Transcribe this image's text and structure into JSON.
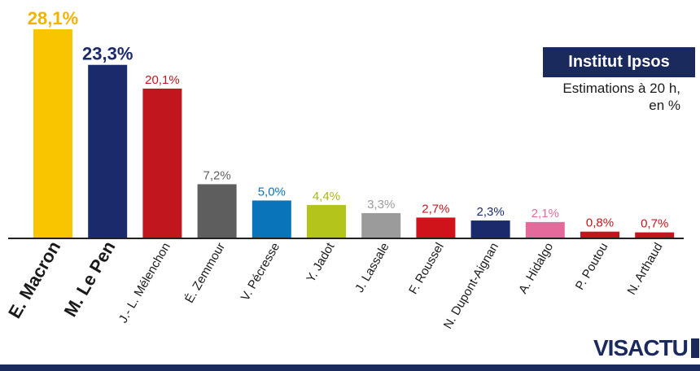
{
  "header": {
    "source": "Institut Ipsos",
    "subtitle_line1": "Estimations à 20 h,",
    "subtitle_line2": "en %"
  },
  "logo": {
    "text_vis": "VIS",
    "text_actu": "ACTU"
  },
  "colors": {
    "axis": "#222222",
    "brand": "#1b2a5c",
    "footer": "#1b2a5c"
  },
  "chart_data": {
    "type": "bar",
    "title": "",
    "xlabel": "",
    "ylabel": "",
    "ylim": [
      0,
      28.1
    ],
    "grid": false,
    "categories": [
      "E. Macron",
      "M. Le Pen",
      "J.- L. Mélenchon",
      "É. Zemmour",
      "V. Pécresse",
      "Y. Jadot",
      "J. Lassale",
      "F. Roussel",
      "N. Dupont-Aignan",
      "A. Hidalgo",
      "P. Poutou",
      "N. Arthaud"
    ],
    "values": [
      28.1,
      23.3,
      20.1,
      7.2,
      5.0,
      4.4,
      3.3,
      2.7,
      2.3,
      2.1,
      0.8,
      0.7
    ],
    "value_labels": [
      "28,1%",
      "23,3%",
      "20,1%",
      "7,2%",
      "5,0%",
      "4,4%",
      "3,3%",
      "2,7%",
      "2,3%",
      "2,1%",
      "0,8%",
      "0,7%"
    ],
    "bar_colors": [
      "#f9c400",
      "#1b2a6b",
      "#c1161d",
      "#5e5e5e",
      "#0a74bb",
      "#b4c41b",
      "#9b9b9b",
      "#d0121b",
      "#1b2a6b",
      "#e46a9c",
      "#c1161d",
      "#c1161d"
    ],
    "label_colors": [
      "#f0b400",
      "#1b2a6b",
      "#c1161d",
      "#5e5e5e",
      "#0a74bb",
      "#a9b816",
      "#9b9b9b",
      "#c1161d",
      "#1b2a6b",
      "#e46a9c",
      "#c1161d",
      "#c1161d"
    ],
    "highlighted": [
      true,
      true,
      false,
      false,
      false,
      false,
      false,
      false,
      false,
      false,
      false,
      false
    ]
  }
}
